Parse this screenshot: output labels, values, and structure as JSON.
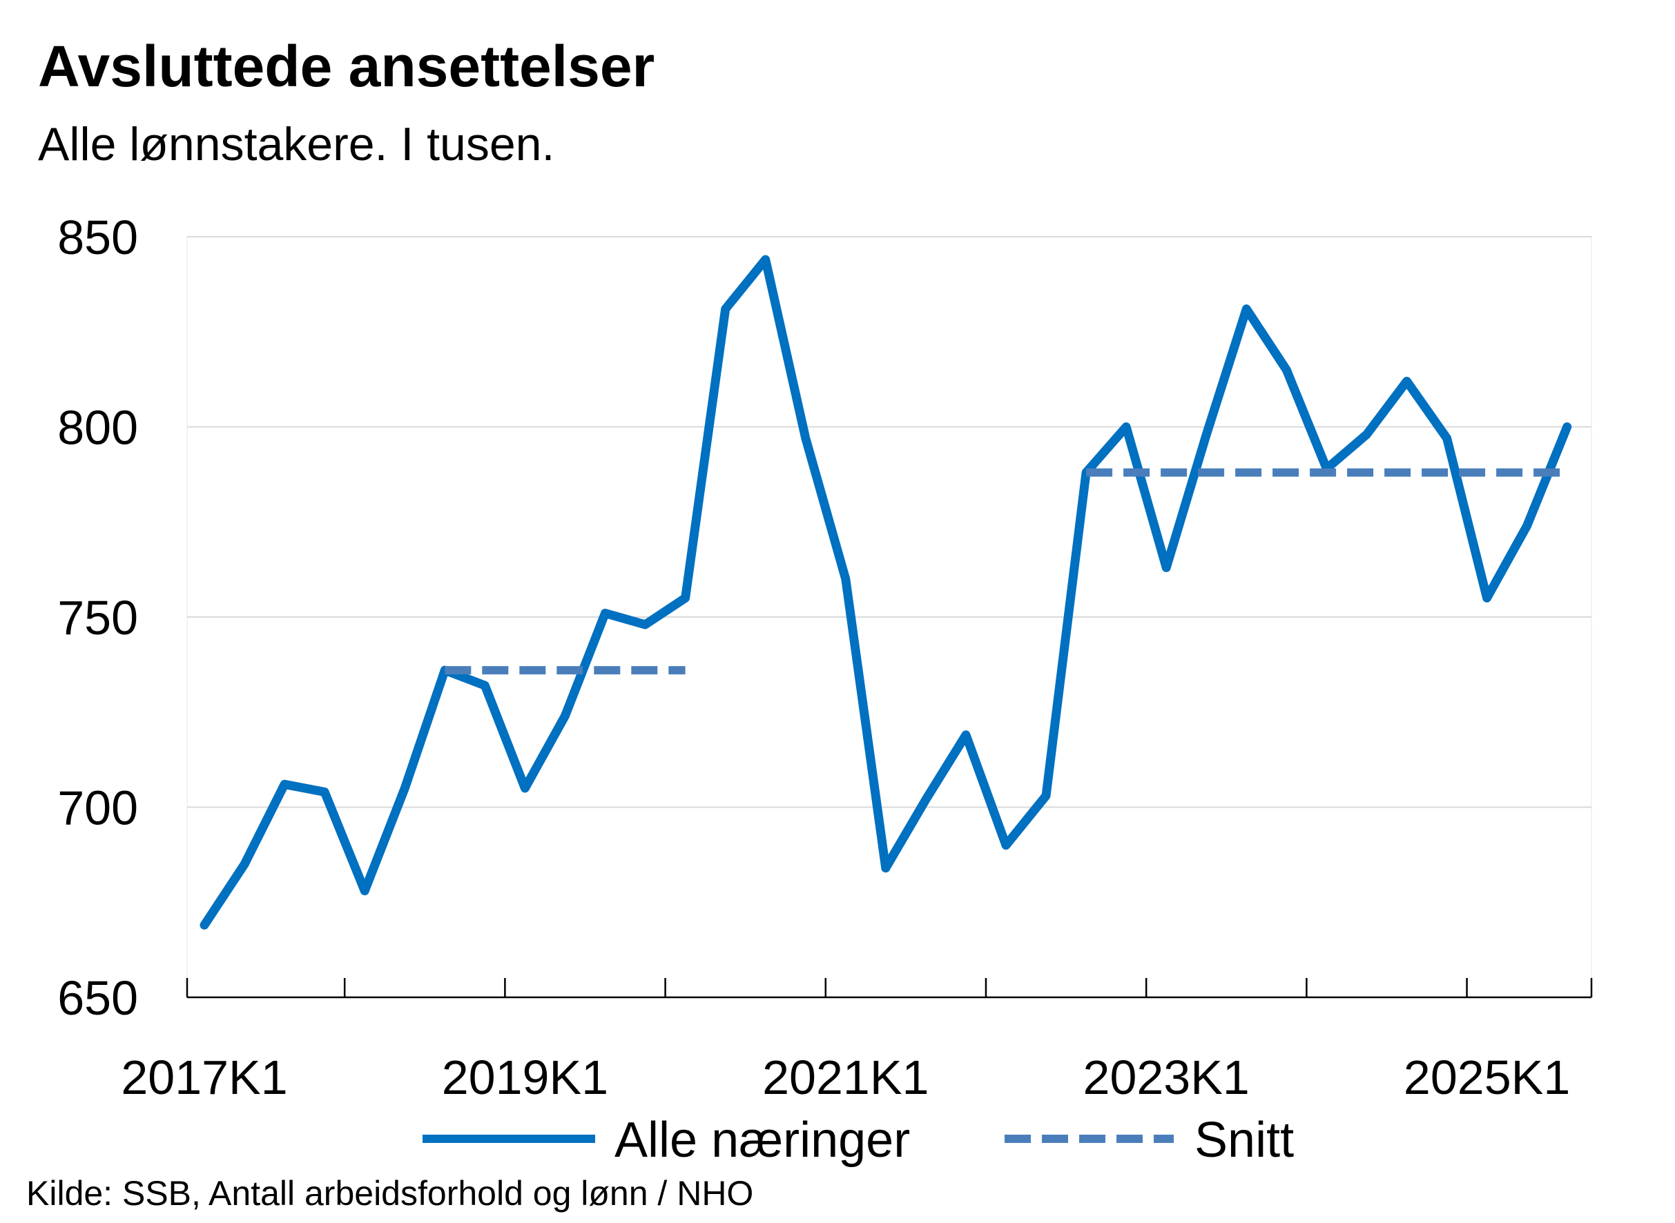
{
  "title": "Avsluttede ansettelser",
  "subtitle": "Alle lønnstakere. I tusen.",
  "source": "Kilde: SSB, Antall arbeidsforhold og lønn / NHO",
  "colors": {
    "series": "#0070C0",
    "average": "#4A7EBB",
    "grid": "#D9D9D9",
    "axis": "#000000"
  },
  "chart_data": {
    "type": "line",
    "xlabel": "",
    "ylabel": "",
    "ylim": [
      650,
      850
    ],
    "yticks": [
      650,
      700,
      750,
      800,
      850
    ],
    "x": [
      "2017K1",
      "2017K2",
      "2017K3",
      "2017K4",
      "2018K1",
      "2018K2",
      "2018K3",
      "2018K4",
      "2019K1",
      "2019K2",
      "2019K3",
      "2019K4",
      "2020K1",
      "2020K2",
      "2020K3",
      "2020K4",
      "2021K1",
      "2021K2",
      "2021K3",
      "2021K4",
      "2022K1",
      "2022K2",
      "2022K3",
      "2022K4",
      "2023K1",
      "2023K2",
      "2023K3",
      "2023K4",
      "2024K1",
      "2024K2",
      "2024K3",
      "2024K4",
      "2025K1",
      "2025K2",
      "2025K3"
    ],
    "xtick_labels": [
      "2017K1",
      "2019K1",
      "2021K1",
      "2023K1",
      "2025K1"
    ],
    "grid": true,
    "legend": "bottom",
    "series": [
      {
        "name": "Alle næringer",
        "style": "solid",
        "values": [
          669,
          685,
          706,
          704,
          678,
          705,
          736,
          732,
          705,
          724,
          751,
          748,
          755,
          831,
          844,
          797,
          760,
          684,
          702,
          719,
          690,
          703,
          788,
          800,
          763,
          798,
          831,
          815,
          789,
          798,
          812,
          797,
          755,
          774,
          800
        ]
      },
      {
        "name": "Snitt",
        "style": "dashed",
        "values": [
          null,
          null,
          null,
          null,
          null,
          null,
          736,
          736,
          736,
          736,
          736,
          736,
          736,
          null,
          null,
          null,
          null,
          null,
          null,
          null,
          null,
          null,
          788,
          788,
          788,
          788,
          788,
          788,
          788,
          788,
          788,
          788,
          788,
          788,
          788
        ]
      }
    ]
  }
}
